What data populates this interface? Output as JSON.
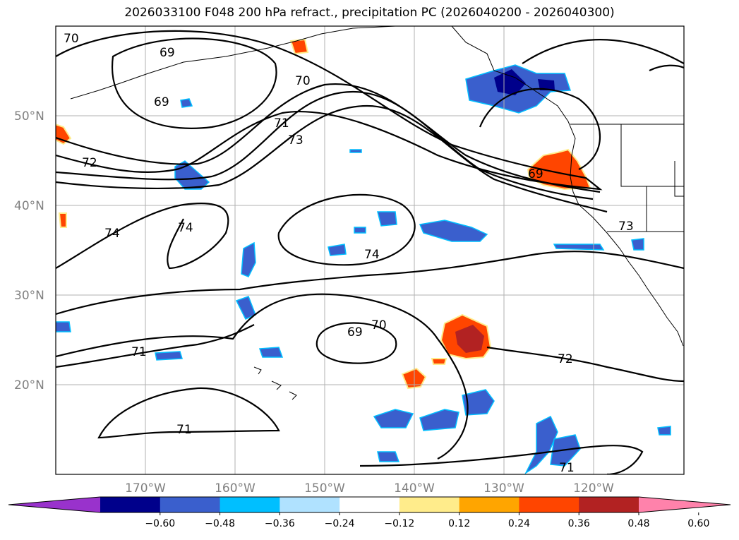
{
  "title": "2026033100 F048 200 hPa refract., precipitation PC (2026040200 - 2026040300)",
  "lat_labels": [
    "50°N",
    "40°N",
    "30°N",
    "20°N"
  ],
  "lon_labels": [
    "170°W",
    "160°W",
    "150°W",
    "140°W",
    "130°W",
    "120°W"
  ],
  "contour_labels": [
    "70",
    "69",
    "69",
    "70",
    "71",
    "73",
    "72",
    "74",
    "74",
    "74",
    "69",
    "73",
    "69",
    "70",
    "71",
    "72",
    "71",
    "71"
  ],
  "colorbar": {
    "colors": [
      "#9932CC",
      "#00008B",
      "#3A5FCD",
      "#00BFFF",
      "#B0E2FF",
      "#FFFFFF",
      "#FFEC8B",
      "#FFA500",
      "#FF4500",
      "#B22222",
      "#FF82AB"
    ],
    "ticks": [
      "−0.60",
      "−0.48",
      "−0.36",
      "−0.24",
      "−0.12",
      "0.12",
      "0.24",
      "0.36",
      "0.48",
      "0.60"
    ]
  },
  "colors": {
    "positive_precip": "#FF4500",
    "negative_precip": "#3A5FCD",
    "contour": "#000000",
    "grid": "#B0B0B0",
    "axis_label": "#808080"
  }
}
